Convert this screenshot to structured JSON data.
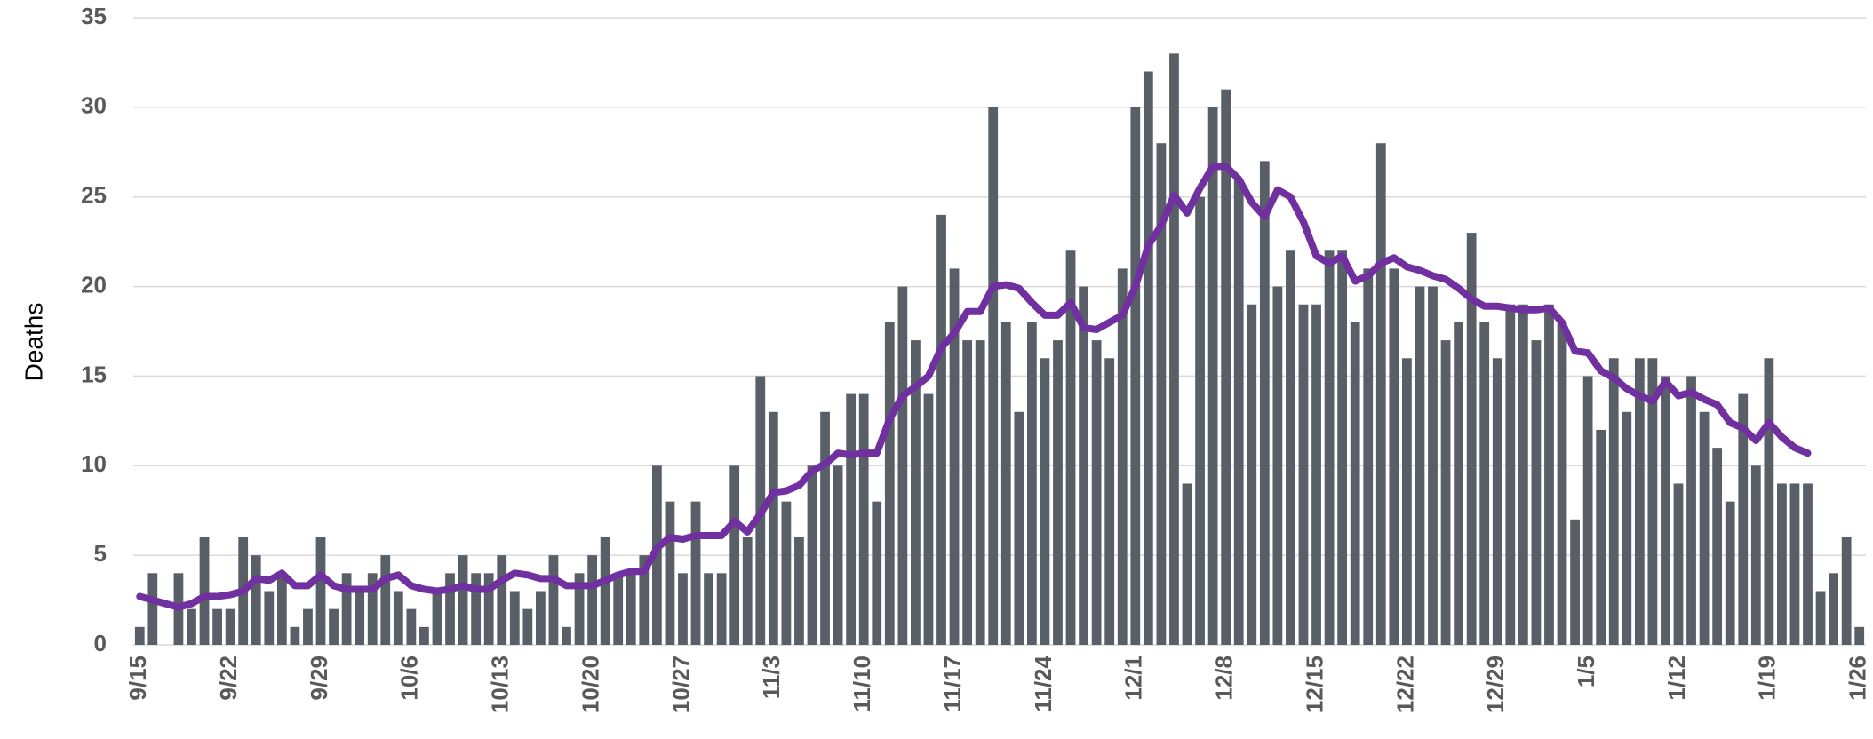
{
  "chart_data": {
    "type": "bar-line",
    "y_label": "Deaths",
    "categories": [
      "9/15",
      null,
      null,
      null,
      null,
      null,
      null,
      "9/22",
      null,
      null,
      null,
      null,
      null,
      null,
      "9/29",
      null,
      null,
      null,
      null,
      null,
      null,
      "10/6",
      null,
      null,
      null,
      null,
      null,
      null,
      "10/13",
      null,
      null,
      null,
      null,
      null,
      null,
      "10/20",
      null,
      null,
      null,
      null,
      null,
      null,
      "10/27",
      null,
      null,
      null,
      null,
      null,
      null,
      "11/3",
      null,
      null,
      null,
      null,
      null,
      null,
      "11/10",
      null,
      null,
      null,
      null,
      null,
      null,
      "11/17",
      null,
      null,
      null,
      null,
      null,
      null,
      "11/24",
      null,
      null,
      null,
      null,
      null,
      null,
      "12/1",
      null,
      null,
      null,
      null,
      null,
      null,
      "12/8",
      null,
      null,
      null,
      null,
      null,
      null,
      "12/15",
      null,
      null,
      null,
      null,
      null,
      null,
      "12/22",
      null,
      null,
      null,
      null,
      null,
      null,
      "12/29",
      null,
      null,
      null,
      null,
      null,
      null,
      "1/5",
      null,
      null,
      null,
      null,
      null,
      null,
      "1/12",
      null,
      null,
      null,
      null,
      null,
      null,
      "1/19",
      null,
      null,
      null,
      null,
      null,
      null,
      "1/26"
    ],
    "series": [
      {
        "type": "bar",
        "color": "#595f67",
        "values": [
          1,
          4,
          0,
          4,
          2,
          6,
          2,
          2,
          6,
          5,
          3,
          4,
          1,
          2,
          6,
          2,
          4,
          3,
          4,
          5,
          3,
          2,
          1,
          3,
          4,
          5,
          4,
          4,
          5,
          3,
          2,
          3,
          5,
          1,
          4,
          5,
          6,
          4,
          4,
          5,
          10,
          8,
          4,
          8,
          4,
          4,
          10,
          6,
          15,
          13,
          8,
          6,
          10,
          13,
          10,
          14,
          14,
          8,
          18,
          20,
          17,
          14,
          24,
          21,
          17,
          17,
          30,
          18,
          13,
          18,
          16,
          17,
          22,
          20,
          17,
          16,
          21,
          30,
          32,
          28,
          33,
          9,
          25,
          30,
          31,
          26,
          19,
          27,
          20,
          22,
          19,
          19,
          22,
          22,
          18,
          21,
          28,
          21,
          16,
          20,
          20,
          17,
          18,
          23,
          18,
          16,
          19,
          19,
          17,
          19,
          18,
          7,
          15,
          12,
          16,
          13,
          16,
          16,
          15,
          9,
          15,
          13,
          11,
          8,
          14,
          10,
          16,
          9,
          9,
          9,
          3,
          4,
          6,
          1
        ]
      },
      {
        "type": "line",
        "color": "#7030a0",
        "values": [
          2.7,
          2.5,
          2.3,
          2.1,
          2.3,
          2.7,
          2.7,
          2.8,
          3.0,
          3.7,
          3.6,
          4.0,
          3.3,
          3.3,
          3.9,
          3.3,
          3.1,
          3.1,
          3.1,
          3.7,
          3.9,
          3.3,
          3.1,
          3.0,
          3.1,
          3.3,
          3.1,
          3.1,
          3.6,
          4.0,
          3.9,
          3.7,
          3.7,
          3.3,
          3.3,
          3.3,
          3.6,
          3.9,
          4.1,
          4.1,
          5.4,
          6.0,
          5.9,
          6.1,
          6.1,
          6.1,
          6.9,
          6.3,
          7.3,
          8.5,
          8.6,
          8.9,
          9.7,
          10.1,
          10.7,
          10.6,
          10.7,
          10.7,
          12.6,
          13.9,
          14.4,
          15.0,
          16.6,
          17.4,
          18.6,
          18.6,
          20.0,
          20.1,
          19.9,
          19.1,
          18.4,
          18.4,
          19.1,
          17.7,
          17.6,
          18.0,
          18.4,
          20.0,
          22.3,
          23.4,
          25.1,
          24.1,
          25.5,
          26.7,
          26.7,
          26.0,
          24.7,
          23.9,
          25.4,
          25.0,
          23.6,
          21.7,
          21.3,
          21.7,
          20.3,
          20.6,
          21.3,
          21.6,
          21.1,
          20.9,
          20.6,
          20.4,
          19.9,
          19.3,
          18.9,
          18.9,
          18.8,
          18.7,
          18.7,
          18.8,
          18.0,
          16.4,
          16.3,
          15.3,
          14.9,
          14.3,
          13.9,
          13.6,
          14.7,
          13.9,
          14.1,
          13.7,
          13.4,
          12.4,
          12.1,
          11.4,
          12.4,
          11.6,
          11.0,
          10.7,
          null,
          null,
          null,
          null
        ]
      }
    ],
    "ylim": [
      0,
      35
    ],
    "yticks": [
      0,
      5,
      10,
      15,
      20,
      25,
      30,
      35
    ],
    "grid": true
  }
}
